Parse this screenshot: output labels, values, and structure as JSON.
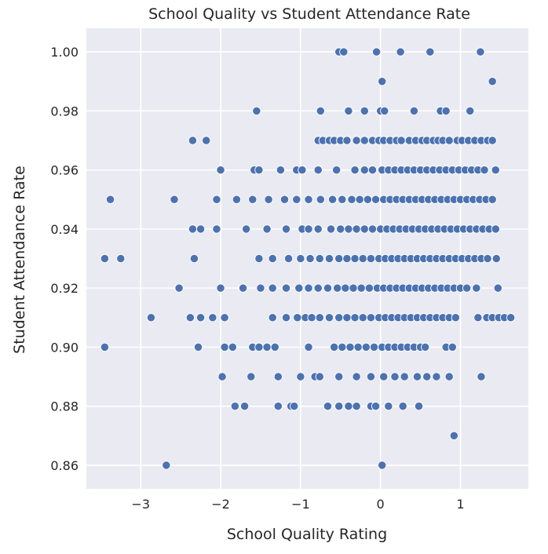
{
  "chart_data": {
    "type": "scatter",
    "title": "School Quality vs Student Attendance Rate",
    "xlabel": "School Quality Rating",
    "ylabel": "Student Attendance Rate",
    "xlim": [
      -3.68,
      1.85
    ],
    "ylim": [
      0.852,
      1.008
    ],
    "xticks": [
      -3,
      -2,
      -1,
      0,
      1
    ],
    "xtick_labels": [
      "−3",
      "−2",
      "−1",
      "0",
      "1"
    ],
    "yticks": [
      0.86,
      0.88,
      0.9,
      0.92,
      0.94,
      0.96,
      0.98,
      1.0
    ],
    "ytick_labels": [
      "0.86",
      "0.88",
      "0.90",
      "0.92",
      "0.94",
      "0.96",
      "0.98",
      "1.00"
    ],
    "grid": true,
    "background_color": "#eaeaf2",
    "marker_color": "#4c72b0",
    "points": [
      [
        -0.52,
        1.0
      ],
      [
        -0.46,
        1.0
      ],
      [
        -0.05,
        1.0
      ],
      [
        0.25,
        1.0
      ],
      [
        0.62,
        1.0
      ],
      [
        1.25,
        1.0
      ],
      [
        0.02,
        0.99
      ],
      [
        1.4,
        0.99
      ],
      [
        -1.55,
        0.98
      ],
      [
        -0.75,
        0.98
      ],
      [
        -0.4,
        0.98
      ],
      [
        -0.2,
        0.98
      ],
      [
        0.0,
        0.98
      ],
      [
        0.05,
        0.98
      ],
      [
        0.42,
        0.98
      ],
      [
        0.75,
        0.98
      ],
      [
        0.82,
        0.98
      ],
      [
        1.12,
        0.98
      ],
      [
        -2.35,
        0.97
      ],
      [
        -2.18,
        0.97
      ],
      [
        -0.78,
        0.97
      ],
      [
        -0.72,
        0.97
      ],
      [
        -0.64,
        0.97
      ],
      [
        -0.58,
        0.97
      ],
      [
        -0.5,
        0.97
      ],
      [
        -0.42,
        0.97
      ],
      [
        -0.3,
        0.97
      ],
      [
        -0.2,
        0.97
      ],
      [
        -0.1,
        0.97
      ],
      [
        -0.02,
        0.97
      ],
      [
        0.04,
        0.97
      ],
      [
        0.12,
        0.97
      ],
      [
        0.2,
        0.97
      ],
      [
        0.26,
        0.97
      ],
      [
        0.36,
        0.97
      ],
      [
        0.44,
        0.97
      ],
      [
        0.52,
        0.97
      ],
      [
        0.58,
        0.97
      ],
      [
        0.66,
        0.97
      ],
      [
        0.72,
        0.97
      ],
      [
        0.78,
        0.97
      ],
      [
        0.86,
        0.97
      ],
      [
        0.96,
        0.97
      ],
      [
        1.02,
        0.97
      ],
      [
        1.1,
        0.97
      ],
      [
        1.18,
        0.97
      ],
      [
        1.26,
        0.97
      ],
      [
        1.34,
        0.97
      ],
      [
        1.4,
        0.97
      ],
      [
        -2.0,
        0.96
      ],
      [
        -1.58,
        0.96
      ],
      [
        -1.52,
        0.96
      ],
      [
        -1.25,
        0.96
      ],
      [
        -1.05,
        0.96
      ],
      [
        -0.98,
        0.96
      ],
      [
        -0.78,
        0.96
      ],
      [
        -0.55,
        0.96
      ],
      [
        -0.32,
        0.96
      ],
      [
        -0.2,
        0.96
      ],
      [
        -0.1,
        0.96
      ],
      [
        0.02,
        0.96
      ],
      [
        0.1,
        0.96
      ],
      [
        0.18,
        0.96
      ],
      [
        0.26,
        0.96
      ],
      [
        0.34,
        0.96
      ],
      [
        0.42,
        0.96
      ],
      [
        0.5,
        0.96
      ],
      [
        0.58,
        0.96
      ],
      [
        0.66,
        0.96
      ],
      [
        0.74,
        0.96
      ],
      [
        0.82,
        0.96
      ],
      [
        0.9,
        0.96
      ],
      [
        0.98,
        0.96
      ],
      [
        1.06,
        0.96
      ],
      [
        1.14,
        0.96
      ],
      [
        1.22,
        0.96
      ],
      [
        1.3,
        0.96
      ],
      [
        1.44,
        0.96
      ],
      [
        -3.38,
        0.95
      ],
      [
        -2.58,
        0.95
      ],
      [
        -2.05,
        0.95
      ],
      [
        -1.8,
        0.95
      ],
      [
        -1.6,
        0.95
      ],
      [
        -1.4,
        0.95
      ],
      [
        -1.2,
        0.95
      ],
      [
        -1.05,
        0.95
      ],
      [
        -0.9,
        0.95
      ],
      [
        -0.75,
        0.95
      ],
      [
        -0.6,
        0.95
      ],
      [
        -0.48,
        0.95
      ],
      [
        -0.36,
        0.95
      ],
      [
        -0.26,
        0.95
      ],
      [
        -0.16,
        0.95
      ],
      [
        -0.06,
        0.95
      ],
      [
        0.04,
        0.95
      ],
      [
        0.12,
        0.95
      ],
      [
        0.2,
        0.95
      ],
      [
        0.28,
        0.95
      ],
      [
        0.36,
        0.95
      ],
      [
        0.44,
        0.95
      ],
      [
        0.52,
        0.95
      ],
      [
        0.6,
        0.95
      ],
      [
        0.68,
        0.95
      ],
      [
        0.76,
        0.95
      ],
      [
        0.84,
        0.95
      ],
      [
        0.92,
        0.95
      ],
      [
        1.0,
        0.95
      ],
      [
        1.08,
        0.95
      ],
      [
        1.16,
        0.95
      ],
      [
        1.24,
        0.95
      ],
      [
        1.32,
        0.95
      ],
      [
        1.4,
        0.95
      ],
      [
        -2.35,
        0.94
      ],
      [
        -2.25,
        0.94
      ],
      [
        -2.05,
        0.94
      ],
      [
        -1.68,
        0.94
      ],
      [
        -1.42,
        0.94
      ],
      [
        -1.18,
        0.94
      ],
      [
        -0.98,
        0.94
      ],
      [
        -0.9,
        0.94
      ],
      [
        -0.78,
        0.94
      ],
      [
        -0.62,
        0.94
      ],
      [
        -0.5,
        0.94
      ],
      [
        -0.4,
        0.94
      ],
      [
        -0.3,
        0.94
      ],
      [
        -0.2,
        0.94
      ],
      [
        -0.1,
        0.94
      ],
      [
        0.0,
        0.94
      ],
      [
        0.08,
        0.94
      ],
      [
        0.16,
        0.94
      ],
      [
        0.24,
        0.94
      ],
      [
        0.32,
        0.94
      ],
      [
        0.4,
        0.94
      ],
      [
        0.48,
        0.94
      ],
      [
        0.56,
        0.94
      ],
      [
        0.64,
        0.94
      ],
      [
        0.72,
        0.94
      ],
      [
        0.8,
        0.94
      ],
      [
        0.88,
        0.94
      ],
      [
        0.96,
        0.94
      ],
      [
        1.04,
        0.94
      ],
      [
        1.12,
        0.94
      ],
      [
        1.2,
        0.94
      ],
      [
        1.28,
        0.94
      ],
      [
        1.36,
        0.94
      ],
      [
        1.44,
        0.94
      ],
      [
        -3.45,
        0.93
      ],
      [
        -3.25,
        0.93
      ],
      [
        -2.33,
        0.93
      ],
      [
        -1.52,
        0.93
      ],
      [
        -1.35,
        0.93
      ],
      [
        -1.15,
        0.93
      ],
      [
        -1.0,
        0.93
      ],
      [
        -0.88,
        0.93
      ],
      [
        -0.76,
        0.93
      ],
      [
        -0.64,
        0.93
      ],
      [
        -0.52,
        0.93
      ],
      [
        -0.42,
        0.93
      ],
      [
        -0.32,
        0.93
      ],
      [
        -0.22,
        0.93
      ],
      [
        -0.12,
        0.93
      ],
      [
        -0.02,
        0.93
      ],
      [
        0.06,
        0.93
      ],
      [
        0.14,
        0.93
      ],
      [
        0.22,
        0.93
      ],
      [
        0.3,
        0.93
      ],
      [
        0.38,
        0.93
      ],
      [
        0.46,
        0.93
      ],
      [
        0.54,
        0.93
      ],
      [
        0.62,
        0.93
      ],
      [
        0.7,
        0.93
      ],
      [
        0.78,
        0.93
      ],
      [
        0.86,
        0.93
      ],
      [
        0.94,
        0.93
      ],
      [
        1.02,
        0.93
      ],
      [
        1.1,
        0.93
      ],
      [
        1.18,
        0.93
      ],
      [
        1.26,
        0.93
      ],
      [
        1.34,
        0.93
      ],
      [
        1.45,
        0.93
      ],
      [
        -2.52,
        0.92
      ],
      [
        -2.0,
        0.92
      ],
      [
        -1.72,
        0.92
      ],
      [
        -1.5,
        0.92
      ],
      [
        -1.35,
        0.92
      ],
      [
        -1.18,
        0.92
      ],
      [
        -1.02,
        0.92
      ],
      [
        -0.9,
        0.92
      ],
      [
        -0.78,
        0.92
      ],
      [
        -0.66,
        0.92
      ],
      [
        -0.54,
        0.92
      ],
      [
        -0.44,
        0.92
      ],
      [
        -0.34,
        0.92
      ],
      [
        -0.24,
        0.92
      ],
      [
        -0.14,
        0.92
      ],
      [
        -0.04,
        0.92
      ],
      [
        0.04,
        0.92
      ],
      [
        0.12,
        0.92
      ],
      [
        0.2,
        0.92
      ],
      [
        0.28,
        0.92
      ],
      [
        0.36,
        0.92
      ],
      [
        0.44,
        0.92
      ],
      [
        0.52,
        0.92
      ],
      [
        0.6,
        0.92
      ],
      [
        0.68,
        0.92
      ],
      [
        0.76,
        0.92
      ],
      [
        0.84,
        0.92
      ],
      [
        0.92,
        0.92
      ],
      [
        1.0,
        0.92
      ],
      [
        1.08,
        0.92
      ],
      [
        1.2,
        0.92
      ],
      [
        1.47,
        0.92
      ],
      [
        -2.87,
        0.91
      ],
      [
        -2.38,
        0.91
      ],
      [
        -2.25,
        0.91
      ],
      [
        -2.1,
        0.91
      ],
      [
        -1.95,
        0.91
      ],
      [
        -1.35,
        0.91
      ],
      [
        -1.18,
        0.91
      ],
      [
        -1.04,
        0.91
      ],
      [
        -0.94,
        0.91
      ],
      [
        -0.86,
        0.91
      ],
      [
        -0.76,
        0.91
      ],
      [
        -0.64,
        0.91
      ],
      [
        -0.52,
        0.91
      ],
      [
        -0.42,
        0.91
      ],
      [
        -0.32,
        0.91
      ],
      [
        -0.22,
        0.91
      ],
      [
        -0.12,
        0.91
      ],
      [
        -0.02,
        0.91
      ],
      [
        0.06,
        0.91
      ],
      [
        0.14,
        0.91
      ],
      [
        0.22,
        0.91
      ],
      [
        0.3,
        0.91
      ],
      [
        0.38,
        0.91
      ],
      [
        0.46,
        0.91
      ],
      [
        0.54,
        0.91
      ],
      [
        0.62,
        0.91
      ],
      [
        0.7,
        0.91
      ],
      [
        0.78,
        0.91
      ],
      [
        0.86,
        0.91
      ],
      [
        0.94,
        0.91
      ],
      [
        1.22,
        0.91
      ],
      [
        1.33,
        0.91
      ],
      [
        1.4,
        0.91
      ],
      [
        1.48,
        0.91
      ],
      [
        1.55,
        0.91
      ],
      [
        1.63,
        0.91
      ],
      [
        -3.45,
        0.9
      ],
      [
        -2.28,
        0.9
      ],
      [
        -1.95,
        0.9
      ],
      [
        -1.85,
        0.9
      ],
      [
        -1.6,
        0.9
      ],
      [
        -1.52,
        0.9
      ],
      [
        -1.42,
        0.9
      ],
      [
        -1.32,
        0.9
      ],
      [
        -0.9,
        0.9
      ],
      [
        -0.58,
        0.9
      ],
      [
        -0.48,
        0.9
      ],
      [
        -0.38,
        0.9
      ],
      [
        -0.28,
        0.9
      ],
      [
        -0.18,
        0.9
      ],
      [
        -0.08,
        0.9
      ],
      [
        0.02,
        0.9
      ],
      [
        0.1,
        0.9
      ],
      [
        0.18,
        0.9
      ],
      [
        0.26,
        0.9
      ],
      [
        0.34,
        0.9
      ],
      [
        0.42,
        0.9
      ],
      [
        0.5,
        0.9
      ],
      [
        0.56,
        0.9
      ],
      [
        0.82,
        0.9
      ],
      [
        0.9,
        0.9
      ],
      [
        -1.98,
        0.89
      ],
      [
        -1.62,
        0.89
      ],
      [
        -1.28,
        0.89
      ],
      [
        -1.0,
        0.89
      ],
      [
        -0.82,
        0.89
      ],
      [
        -0.76,
        0.89
      ],
      [
        -0.52,
        0.89
      ],
      [
        -0.3,
        0.89
      ],
      [
        -0.12,
        0.89
      ],
      [
        0.04,
        0.89
      ],
      [
        0.18,
        0.89
      ],
      [
        0.3,
        0.89
      ],
      [
        0.46,
        0.89
      ],
      [
        0.58,
        0.89
      ],
      [
        0.7,
        0.89
      ],
      [
        0.86,
        0.89
      ],
      [
        1.26,
        0.89
      ],
      [
        -1.82,
        0.88
      ],
      [
        -1.7,
        0.88
      ],
      [
        -1.28,
        0.88
      ],
      [
        -1.12,
        0.88
      ],
      [
        -1.08,
        0.88
      ],
      [
        -0.66,
        0.88
      ],
      [
        -0.52,
        0.88
      ],
      [
        -0.4,
        0.88
      ],
      [
        -0.3,
        0.88
      ],
      [
        -0.12,
        0.88
      ],
      [
        -0.06,
        0.88
      ],
      [
        0.1,
        0.88
      ],
      [
        0.28,
        0.88
      ],
      [
        0.48,
        0.88
      ],
      [
        0.92,
        0.87
      ],
      [
        -2.68,
        0.86
      ],
      [
        0.02,
        0.86
      ]
    ]
  }
}
